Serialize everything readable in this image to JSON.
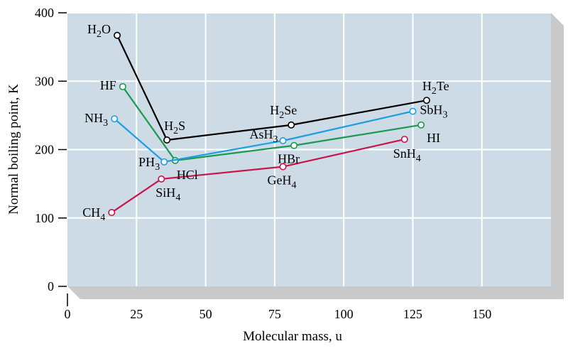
{
  "chart_data": {
    "type": "line",
    "title": "",
    "xlabel": "Molecular mass, u",
    "ylabel": "Normal boiling point, K",
    "xlim": [
      0,
      175
    ],
    "ylim": [
      0,
      400
    ],
    "x_ticks": [
      0,
      25,
      50,
      75,
      100,
      125,
      150
    ],
    "y_ticks": [
      0,
      100,
      200,
      300,
      400
    ],
    "grid": true,
    "colors": {
      "plot_background": "#cddbe6",
      "grid": "#ffffff",
      "depth": "#c8c9cb"
    },
    "series": [
      {
        "color": "#000000",
        "points": [
          {
            "label": "H2O",
            "x": 18,
            "y": 367
          },
          {
            "label": "H2S",
            "x": 36,
            "y": 214
          },
          {
            "label": "H2Se",
            "x": 81,
            "y": 236
          },
          {
            "label": "H2Te",
            "x": 130,
            "y": 272
          }
        ]
      },
      {
        "color": "#1a9a50",
        "points": [
          {
            "label": "HF",
            "x": 20,
            "y": 292
          },
          {
            "label": "HCl",
            "x": 39,
            "y": 184
          },
          {
            "label": "HBr",
            "x": 82,
            "y": 206
          },
          {
            "label": "HI",
            "x": 128,
            "y": 236
          }
        ]
      },
      {
        "color": "#1b9ee0",
        "points": [
          {
            "label": "NH3",
            "x": 17,
            "y": 245
          },
          {
            "label": "PH3",
            "x": 35,
            "y": 182
          },
          {
            "label": "AsH3",
            "x": 78,
            "y": 213
          },
          {
            "label": "SbH3",
            "x": 125,
            "y": 256
          }
        ]
      },
      {
        "color": "#c8134b",
        "points": [
          {
            "label": "CH4",
            "x": 16,
            "y": 108
          },
          {
            "label": "SiH4",
            "x": 34,
            "y": 157
          },
          {
            "label": "GeH4",
            "x": 78,
            "y": 175
          },
          {
            "label": "SnH4",
            "x": 122,
            "y": 215
          }
        ]
      }
    ]
  }
}
